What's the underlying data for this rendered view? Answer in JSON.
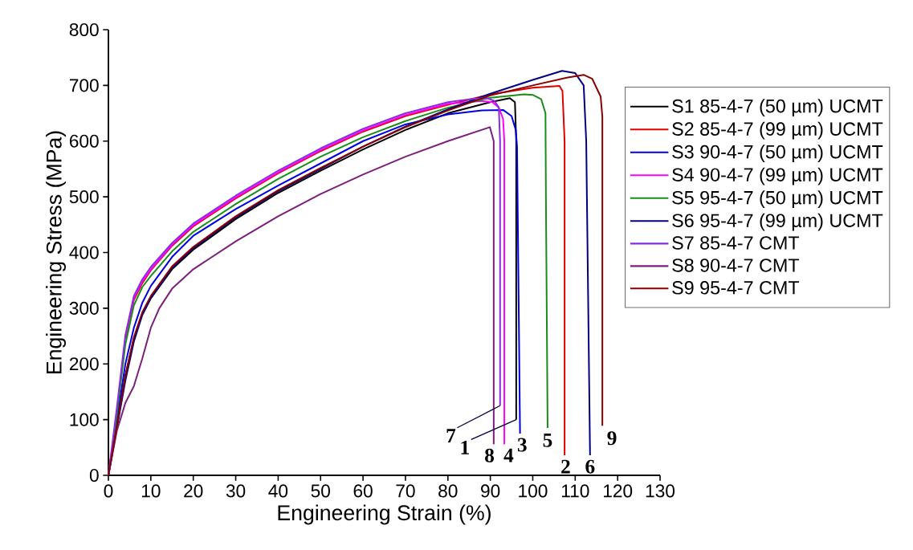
{
  "chart_data": {
    "type": "line",
    "xlabel": "Engineering Strain (%)",
    "ylabel": "Engineering Stress (MPa)",
    "xlim": [
      0,
      130
    ],
    "ylim": [
      0,
      800
    ],
    "xticks": [
      0,
      10,
      20,
      30,
      40,
      50,
      60,
      70,
      80,
      90,
      100,
      110,
      120,
      130
    ],
    "yticks": [
      0,
      100,
      200,
      300,
      400,
      500,
      600,
      700,
      800
    ],
    "grid": false,
    "legend": "top right",
    "marker": "none",
    "line_style": "solid",
    "series": [
      {
        "name": "S1 85-4-7 (50 µm) UCMT",
        "color": "#000000",
        "x": [
          0,
          2,
          4,
          6,
          8,
          10,
          15,
          20,
          30,
          40,
          50,
          60,
          70,
          80,
          90,
          94.6,
          95.8,
          96.1,
          96.1
        ],
        "values": [
          0,
          90,
          180,
          245,
          290,
          318,
          370,
          405,
          460,
          507,
          547,
          585,
          620,
          650,
          670,
          677,
          670,
          600,
          100
        ]
      },
      {
        "name": "S2 85-4-7 (99 µm) UCMT",
        "color": "#e00000",
        "x": [
          4,
          6,
          8,
          10,
          15,
          20,
          30,
          40,
          50,
          60,
          70,
          80,
          90,
          100,
          106.3,
          107,
          107.5,
          107.5
        ],
        "values": [
          245,
          315,
          345,
          368,
          412,
          447,
          497,
          542,
          582,
          617,
          645,
          665,
          684,
          696,
          699,
          690,
          600,
          36
        ]
      },
      {
        "name": "S3 90-4-7 (50 µm) UCMT",
        "color": "#0000e0",
        "x": [
          0,
          2,
          4,
          6,
          8,
          10,
          15,
          20,
          30,
          40,
          50,
          60,
          70,
          80,
          88,
          93,
          95,
          96,
          96.3,
          97
        ],
        "values": [
          0,
          100,
          200,
          265,
          310,
          340,
          392,
          430,
          478,
          520,
          560,
          600,
          630,
          648,
          655,
          656,
          645,
          620,
          590,
          75
        ]
      },
      {
        "name": "S4 90-4-7 (99 µm) UCMT",
        "color": "#ff00ff",
        "x": [
          4,
          6,
          8,
          10,
          15,
          20,
          30,
          40,
          50,
          60,
          70,
          80,
          88,
          90.5,
          92,
          93,
          93.3,
          93.3
        ],
        "values": [
          248,
          318,
          348,
          370,
          414,
          449,
          499,
          544,
          584,
          619,
          647,
          667,
          672,
          670,
          660,
          640,
          600,
          56
        ]
      },
      {
        "name": "S5 95-4-7 (50 µm) UCMT",
        "color": "#1a8c1a",
        "x": [
          0,
          2,
          4,
          6,
          8,
          10,
          15,
          20,
          30,
          40,
          50,
          60,
          70,
          80,
          90,
          98,
          100,
          102,
          103,
          103.1,
          103.5
        ],
        "values": [
          0,
          110,
          235,
          305,
          338,
          358,
          402,
          437,
          487,
          532,
          572,
          607,
          636,
          660,
          678,
          684,
          683,
          675,
          650,
          500,
          85
        ]
      },
      {
        "name": "S6 95-4-7 (99 µm) UCMT",
        "color": "#000080",
        "x": [
          0,
          2,
          4,
          6,
          8,
          10,
          15,
          20,
          30,
          40,
          50,
          60,
          70,
          80,
          90,
          100,
          106.9,
          110,
          112,
          112.6,
          113.5
        ],
        "values": [
          0,
          85,
          170,
          240,
          288,
          318,
          372,
          408,
          463,
          510,
          550,
          590,
          626,
          657,
          685,
          710,
          726,
          722,
          700,
          600,
          36
        ]
      },
      {
        "name": "S7 85-4-7 CMT",
        "color": "#8a2be2",
        "x": [
          0,
          2,
          4,
          6,
          8,
          10,
          15,
          20,
          30,
          40,
          50,
          60,
          70,
          80,
          86,
          89.3,
          91,
          92,
          92.3,
          92.3
        ],
        "values": [
          0,
          122,
          252,
          322,
          352,
          374,
          417,
          452,
          502,
          547,
          587,
          622,
          650,
          670,
          676,
          677,
          672,
          660,
          600,
          125
        ]
      },
      {
        "name": "S8 90-4-7 CMT",
        "color": "#7b1f7b",
        "x": [
          0,
          2,
          4,
          6,
          8,
          10,
          12,
          15,
          20,
          30,
          40,
          50,
          60,
          70,
          80,
          89.9,
          90.8,
          90.8
        ],
        "values": [
          0,
          80,
          130,
          160,
          210,
          265,
          300,
          335,
          370,
          420,
          465,
          505,
          540,
          572,
          600,
          625,
          600,
          56
        ]
      },
      {
        "name": "S9 95-4-7 CMT",
        "color": "#8b0000",
        "x": [
          0,
          2,
          4,
          6,
          8,
          10,
          15,
          20,
          30,
          40,
          50,
          60,
          70,
          80,
          90,
          100,
          108,
          112,
          114,
          116,
          116.4,
          116.4
        ],
        "values": [
          0,
          88,
          178,
          248,
          293,
          322,
          375,
          410,
          465,
          512,
          552,
          590,
          625,
          655,
          682,
          700,
          714,
          719,
          712,
          680,
          644,
          89
        ]
      }
    ],
    "annotations": [
      {
        "text": "7",
        "x": 92.3,
        "y": 125
      },
      {
        "text": "1",
        "x": 96.1,
        "y": 100
      },
      {
        "text": "8",
        "x": 90.8,
        "y": 56
      },
      {
        "text": "4",
        "x": 93.3,
        "y": 56
      },
      {
        "text": "3",
        "x": 97,
        "y": 75
      },
      {
        "text": "5",
        "x": 103.5,
        "y": 85
      },
      {
        "text": "2",
        "x": 107.5,
        "y": 36
      },
      {
        "text": "6",
        "x": 113.5,
        "y": 36
      },
      {
        "text": "9",
        "x": 116.4,
        "y": 89
      }
    ]
  }
}
